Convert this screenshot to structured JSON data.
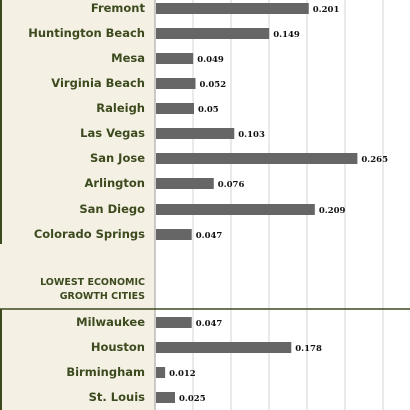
{
  "chart_data": {
    "type": "bar",
    "orientation": "horizontal",
    "grid": true,
    "bar_color": "#666666",
    "text_color": "#3c4a1e",
    "background_color": "#f4f1e4",
    "groups": [
      {
        "heading": "",
        "categories": [
          "Fremont",
          "Huntington Beach",
          "Mesa",
          "Virginia Beach",
          "Raleigh",
          "Las Vegas",
          "San Jose",
          "Arlington",
          "San Diego",
          "Colorado Springs"
        ],
        "values": [
          0.201,
          0.149,
          0.049,
          0.052,
          0.05,
          0.103,
          0.265,
          0.076,
          0.209,
          0.047
        ],
        "value_labels": [
          "0.201",
          "0.149",
          "0.049",
          "0.052",
          "0.05",
          "0.103",
          "0.265",
          "0.076",
          "0.209",
          "0.047"
        ]
      },
      {
        "heading_lines": [
          "LOWEST ECONOMIC",
          "GROWTH CITIES"
        ],
        "categories": [
          "Milwaukee",
          "Houston",
          "Birmingham",
          "St. Louis"
        ],
        "values": [
          0.047,
          0.178,
          0.012,
          0.025
        ],
        "value_labels": [
          "0.047",
          "0.178",
          "0.012",
          "0.025"
        ]
      }
    ]
  }
}
